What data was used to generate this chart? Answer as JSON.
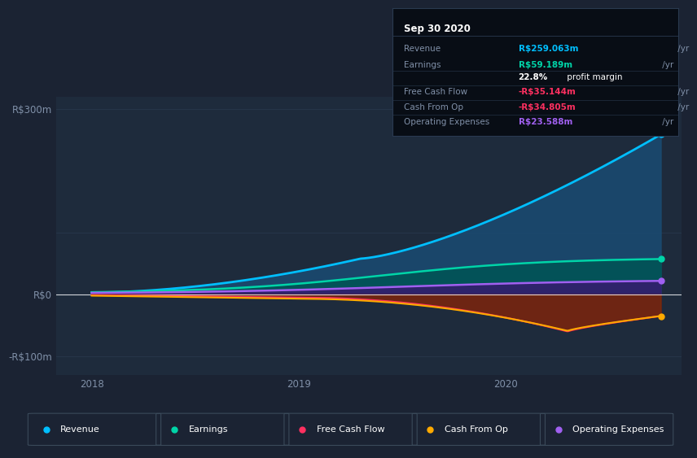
{
  "bg_color": "#1b2333",
  "plot_bg_color": "#1e2b3c",
  "grid_color": "#2a3a50",
  "text_color": "#8090a8",
  "y_label_300": "R$300m",
  "y_label_0": "R$0",
  "y_label_n100": "-R$100m",
  "x_ticks": [
    2018,
    2019,
    2020
  ],
  "ylim": [
    -130,
    320
  ],
  "xlim_start": 2017.83,
  "xlim_end": 2020.85,
  "revenue_color": "#00bfff",
  "revenue_fill": "#1a4a70",
  "earnings_color": "#00d4a8",
  "earnings_fill": "#005555",
  "opex_color": "#a060f0",
  "opex_fill": "#3a1870",
  "fcf_color": "#ff3060",
  "fcf_fill": "#7a0020",
  "cashop_color": "#ffaa00",
  "cashop_fill": "#7a4000",
  "info_box_bg": "#080d15",
  "info_box_border": "#2a3a50",
  "info_date": "Sep 30 2020",
  "info_revenue_val": "R$259.063m",
  "info_revenue_color": "#00bfff",
  "info_earnings_val": "R$59.189m",
  "info_earnings_color": "#00d4a8",
  "info_margin": "22.8%",
  "info_fcf_val": "-R$35.144m",
  "info_fcf_color": "#ff3060",
  "info_cashop_val": "-R$34.805m",
  "info_cashop_color": "#ff3060",
  "info_opex_val": "R$23.588m",
  "info_opex_color": "#a060f0",
  "legend_items": [
    {
      "label": "Revenue",
      "color": "#00bfff"
    },
    {
      "label": "Earnings",
      "color": "#00d4a8"
    },
    {
      "label": "Free Cash Flow",
      "color": "#ff3060"
    },
    {
      "label": "Cash From Op",
      "color": "#ffaa00"
    },
    {
      "label": "Operating Expenses",
      "color": "#a060f0"
    }
  ]
}
